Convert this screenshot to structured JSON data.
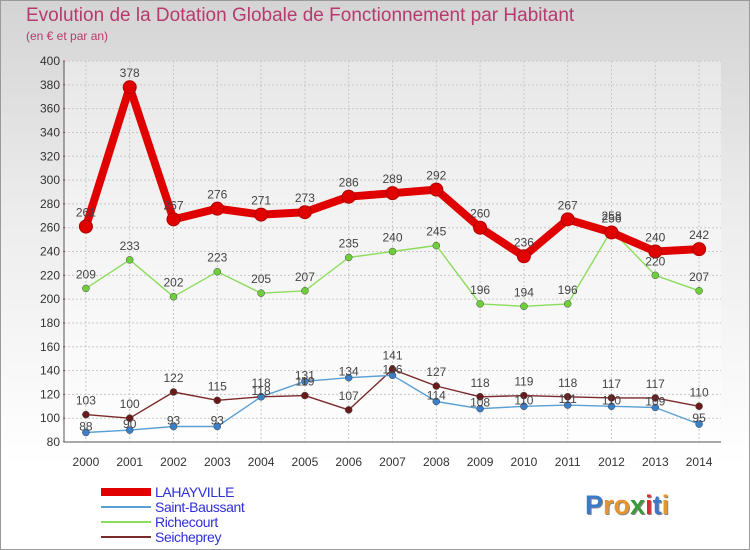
{
  "title": "Evolution de la Dotation Globale de Fonctionnement par Habitant",
  "subtitle": "(en € et par an)",
  "logo": {
    "text": "Proxiti",
    "letters": [
      "P",
      "r",
      "o",
      "x",
      "i",
      "t",
      "i"
    ],
    "colors": [
      "#3a78c8",
      "#e8962a",
      "#e8962a",
      "#3a9a3a",
      "#d92b2b",
      "#3a78c8",
      "#e8962a"
    ]
  },
  "chart_data": {
    "type": "line",
    "x": [
      "2000",
      "2001",
      "2002",
      "2003",
      "2004",
      "2005",
      "2006",
      "2007",
      "2008",
      "2009",
      "2010",
      "2011",
      "2012",
      "2013",
      "2014"
    ],
    "ylim": [
      80,
      400
    ],
    "yticks": [
      "80",
      "100",
      "120",
      "140",
      "160",
      "180",
      "200",
      "220",
      "240",
      "260",
      "280",
      "300",
      "320",
      "340",
      "360",
      "380",
      "400"
    ],
    "grid": true,
    "legend_position": "bottom-left",
    "series": [
      {
        "name": "LAHAYVILLE",
        "color": "#e00000",
        "marker": "#e00000",
        "values": [
          261,
          378,
          267,
          276,
          271,
          273,
          286,
          289,
          292,
          260,
          236,
          267,
          256,
          240,
          242
        ],
        "labels": [
          "261",
          "378",
          "267",
          "276",
          "271",
          "273",
          "286",
          "289",
          "292",
          "260",
          "236",
          "267",
          "256",
          "240",
          "242"
        ]
      },
      {
        "name": "Saint-Baussant",
        "color": "#5a9fd4",
        "marker": "#3a7fc8",
        "values": [
          88,
          90,
          93,
          93,
          118,
          131,
          134,
          136,
          114,
          108,
          110,
          111,
          110,
          109,
          95
        ],
        "labels": [
          "88",
          "90",
          "93",
          "93",
          "118",
          "131",
          "134",
          "136",
          "114",
          "108",
          "110",
          "111",
          "110",
          "109",
          "95"
        ]
      },
      {
        "name": "Richecourt",
        "color": "#8cdc5c",
        "marker": "#6fcf3a",
        "values": [
          209,
          233,
          202,
          223,
          205,
          207,
          235,
          240,
          245,
          196,
          194,
          196,
          258,
          220,
          207
        ],
        "labels": [
          "209",
          "233",
          "202",
          "223",
          "205",
          "207",
          "235",
          "240",
          "245",
          "196",
          "194",
          "196",
          "258",
          "220",
          "207"
        ]
      },
      {
        "name": "Seicheprey",
        "color": "#7a2a2a",
        "marker": "#6a1a1a",
        "values": [
          103,
          100,
          122,
          115,
          118,
          119,
          107,
          141,
          127,
          118,
          119,
          118,
          117,
          117,
          110
        ],
        "labels": [
          "103",
          "100",
          "122",
          "115",
          "118",
          "119",
          "107",
          "141",
          "127",
          "118",
          "119",
          "118",
          "117",
          "117",
          "110"
        ]
      }
    ]
  }
}
